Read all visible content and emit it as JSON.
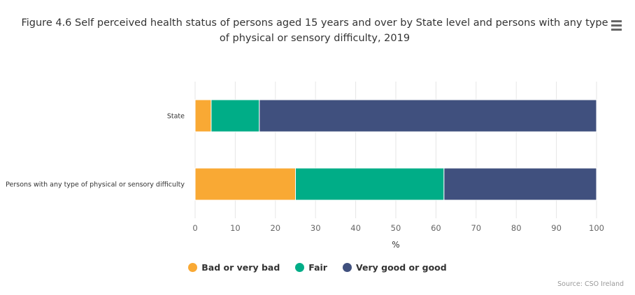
{
  "header": {
    "title": "Figure 4.6 Self perceived health status of persons aged 15 years and over by State level and persons with any type of physical or sensory difficulty, 2019"
  },
  "menu": {
    "icon": "hamburger-menu-icon"
  },
  "chart_data": {
    "type": "bar",
    "orientation": "horizontal",
    "stacking": "normal",
    "categories": [
      "State",
      "Persons with any type of physical or sensory difficulty"
    ],
    "series": [
      {
        "name": "Bad or very bad",
        "color": "#f9a934",
        "values": [
          4,
          25
        ]
      },
      {
        "name": "Fair",
        "color": "#00ad87",
        "values": [
          12,
          37
        ]
      },
      {
        "name": "Very good or good",
        "color": "#40507e",
        "values": [
          84,
          38
        ]
      }
    ],
    "xlabel": "%",
    "xlim": [
      0,
      100
    ],
    "xticks": [
      "0",
      "10",
      "20",
      "30",
      "40",
      "50",
      "60",
      "70",
      "80",
      "90",
      "100"
    ],
    "grid": true,
    "legend_position": "bottom"
  },
  "source": "Source: CSO Ireland"
}
